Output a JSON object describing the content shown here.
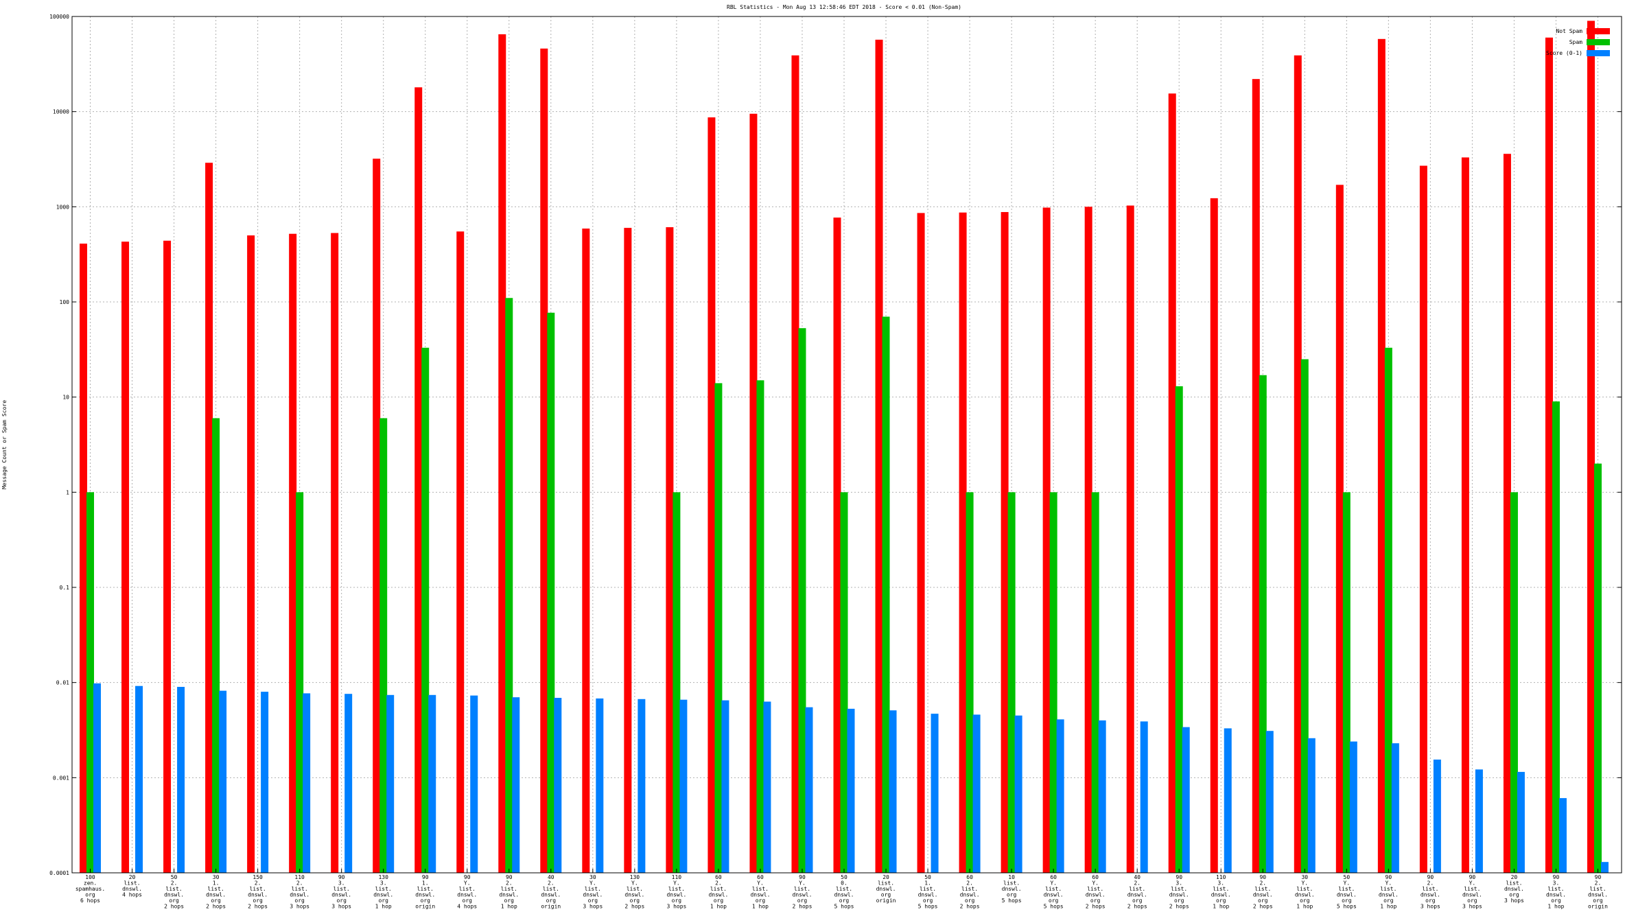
{
  "chart_data": {
    "type": "bar",
    "title": "RBL Statistics - Mon Aug 13 12:58:46 EDT 2018 - Score < 0.01 (Non-Spam)",
    "xlabel": "",
    "ylabel": "Message Count or Spam Score",
    "yscale": "log",
    "ylim": [
      0.0001,
      100000
    ],
    "yticks": [
      "0.0001",
      "0.001",
      "0.01",
      "0.1",
      "1",
      "10",
      "100",
      "1000",
      "10000",
      "100000"
    ],
    "grid": true,
    "legend_position": "top-right",
    "categories": [
      [
        "100",
        "zen.",
        "spamhaus.",
        "org",
        "6 hops"
      ],
      [
        "20",
        "list.",
        "dnswl.",
        "4 hops"
      ],
      [
        "50",
        "2.",
        "list.",
        "dnswl.",
        "org",
        "2 hops"
      ],
      [
        "30",
        "1.",
        "list.",
        "dnswl.",
        "org",
        "2 hops"
      ],
      [
        "150",
        "2.",
        "list.",
        "dnswl.",
        "org",
        "2 hops"
      ],
      [
        "110",
        "2.",
        "list.",
        "dnswl.",
        "org",
        "3 hops"
      ],
      [
        "90",
        "3.",
        "list.",
        "dnswl.",
        "org",
        "3 hops"
      ],
      [
        "130",
        "3.",
        "list.",
        "dnswl.",
        "org",
        "1 hop"
      ],
      [
        "90",
        "1.",
        "list.",
        "dnswl.",
        "org",
        "origin"
      ],
      [
        "90",
        "Y.",
        "list.",
        "dnswl.",
        "org",
        "4 hops"
      ],
      [
        "90",
        "2.",
        "list.",
        "dnswl.",
        "org",
        "1 hop"
      ],
      [
        "40",
        "2.",
        "list.",
        "dnswl.",
        "org",
        "origin"
      ],
      [
        "30",
        "Y.",
        "list.",
        "dnswl.",
        "org",
        "3 hops"
      ],
      [
        "130",
        "Y.",
        "list.",
        "dnswl.",
        "org",
        "2 hops"
      ],
      [
        "110",
        "Y.",
        "list.",
        "dnswl.",
        "org",
        "3 hops"
      ],
      [
        "60",
        "2.",
        "list.",
        "dnswl.",
        "org",
        "1 hop"
      ],
      [
        "60",
        "Y.",
        "list.",
        "dnswl.",
        "org",
        "1 hop"
      ],
      [
        "90",
        "Y.",
        "list.",
        "dnswl.",
        "org",
        "2 hops"
      ],
      [
        "50",
        "0.",
        "list.",
        "dnswl.",
        "org",
        "5 hops"
      ],
      [
        "20",
        "list.",
        "dnswl.",
        "org",
        "origin"
      ],
      [
        "50",
        "1.",
        "list.",
        "dnswl.",
        "org",
        "5 hops"
      ],
      [
        "60",
        "2.",
        "list.",
        "dnswl.",
        "org",
        "2 hops"
      ],
      [
        "10",
        "list.",
        "dnswl.",
        "org",
        "5 hops"
      ],
      [
        "60",
        "Y.",
        "list.",
        "dnswl.",
        "org",
        "5 hops"
      ],
      [
        "60",
        "Y.",
        "list.",
        "dnswl.",
        "org",
        "2 hops"
      ],
      [
        "40",
        "2.",
        "list.",
        "dnswl.",
        "org",
        "2 hops"
      ],
      [
        "90",
        "3.",
        "list.",
        "dnswl.",
        "org",
        "2 hops"
      ],
      [
        "110",
        "3.",
        "list.",
        "dnswl.",
        "org",
        "1 hop"
      ],
      [
        "90",
        "2.",
        "list.",
        "dnswl.",
        "org",
        "2 hops"
      ],
      [
        "30",
        "Y.",
        "list.",
        "dnswl.",
        "org",
        "1 hop"
      ],
      [
        "50",
        "Y.",
        "list.",
        "dnswl.",
        "org",
        "5 hops"
      ],
      [
        "90",
        "Y.",
        "list.",
        "dnswl.",
        "org",
        "1 hop"
      ],
      [
        "90",
        "2.",
        "list.",
        "dnswl.",
        "org",
        "3 hops"
      ],
      [
        "90",
        "Y.",
        "list.",
        "dnswl.",
        "org",
        "3 hops"
      ],
      [
        "20",
        "list.",
        "dnswl.",
        "org",
        "3 hops"
      ],
      [
        "90",
        "3.",
        "list.",
        "dnswl.",
        "org",
        "1 hop"
      ],
      [
        "90",
        "2.",
        "list.",
        "dnswl.",
        "org",
        "origin"
      ]
    ],
    "series": [
      {
        "name": "Not Spam",
        "color": "#ff0000",
        "values": [
          410,
          430,
          440,
          2900,
          500,
          520,
          530,
          3200,
          18000,
          550,
          65000,
          46000,
          590,
          600,
          610,
          8700,
          9500,
          39000,
          770,
          57000,
          860,
          870,
          880,
          980,
          1000,
          1030,
          15500,
          1230,
          22000,
          39000,
          1700,
          58000,
          2700,
          3300,
          3600,
          60000,
          90000
        ]
      },
      {
        "name": "Spam",
        "color": "#00c000",
        "values": [
          1,
          null,
          null,
          6,
          null,
          1,
          null,
          6,
          33,
          null,
          110,
          77,
          null,
          null,
          1,
          14,
          15,
          53,
          1,
          70,
          null,
          1,
          1,
          1,
          1,
          null,
          13,
          null,
          17,
          25,
          1,
          33,
          null,
          null,
          1,
          9,
          2
        ]
      },
      {
        "name": "Score (0-1)",
        "color": "#0080ff",
        "values": [
          0.0098,
          0.0092,
          0.009,
          0.0082,
          0.008,
          0.0077,
          0.0076,
          0.0074,
          0.0074,
          0.0073,
          0.007,
          0.0069,
          0.0068,
          0.0067,
          0.0066,
          0.0065,
          0.0063,
          0.0055,
          0.0053,
          0.0051,
          0.0047,
          0.0046,
          0.0045,
          0.0041,
          0.004,
          0.0039,
          0.0034,
          0.0033,
          0.0031,
          0.0026,
          0.0024,
          0.0023,
          0.00155,
          0.00122,
          0.00115,
          0.00061,
          0.00013
        ]
      }
    ]
  }
}
